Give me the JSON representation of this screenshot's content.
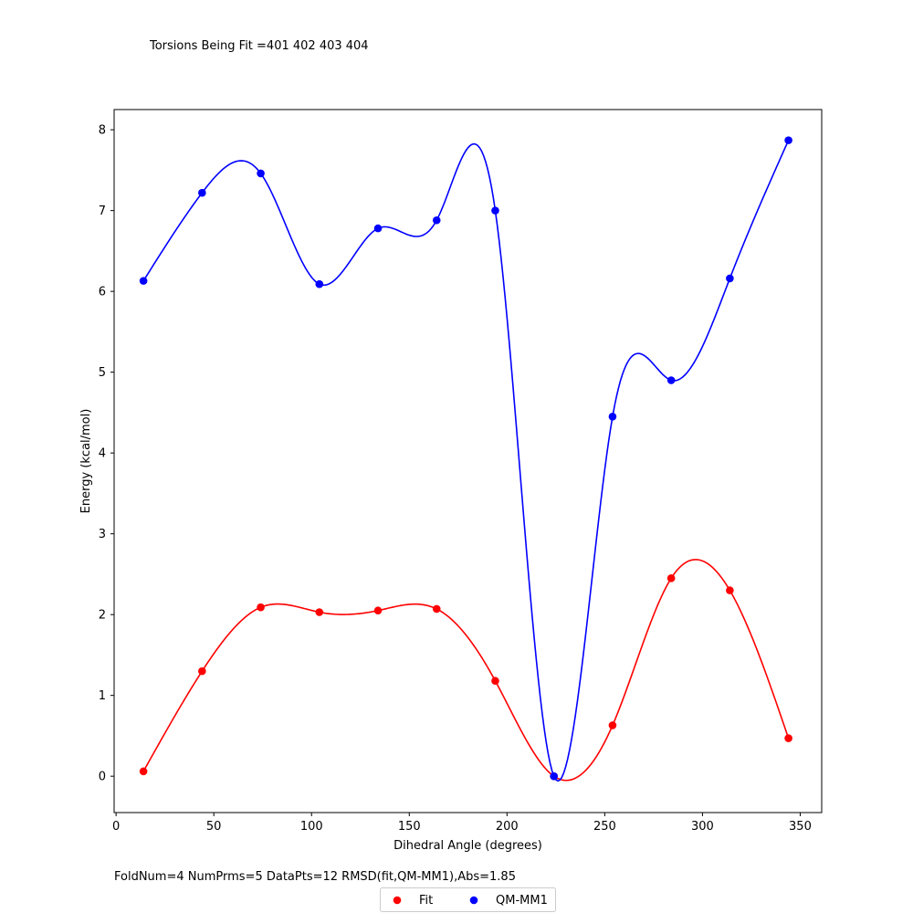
{
  "header_text": "Torsions Being Fit =401 402 403 404",
  "footer_text": "FoldNum=4 NumPrms=5 DataPts=12 RMSD(fit,QM-MM1),Abs=1.85",
  "chart_data": {
    "type": "scatter",
    "xlabel": "Dihedral Angle (degrees)",
    "ylabel": "Energy (kcal/mol)",
    "xlim": [
      -1,
      361
    ],
    "ylim": [
      -0.45,
      8.25
    ],
    "xticks": [
      0,
      50,
      100,
      150,
      200,
      250,
      300,
      350
    ],
    "yticks": [
      0,
      1,
      2,
      3,
      4,
      5,
      6,
      7,
      8
    ],
    "grid": false,
    "legend_position": "lower-center",
    "x": [
      14,
      44,
      74,
      104,
      134,
      164,
      194,
      224,
      254,
      284,
      314,
      344
    ],
    "series": [
      {
        "name": "Fit",
        "color": "#ff0000",
        "values": [
          0.06,
          1.3,
          2.09,
          2.03,
          2.05,
          2.07,
          1.18,
          0.0,
          0.63,
          2.45,
          2.3,
          0.47
        ],
        "smoothed_curve": true
      },
      {
        "name": "QM-MM1",
        "color": "#0000ff",
        "values": [
          6.13,
          7.22,
          7.46,
          6.09,
          6.78,
          6.88,
          7.0,
          0.0,
          4.45,
          4.9,
          6.16,
          7.87
        ],
        "smoothed_curve": true
      }
    ]
  }
}
